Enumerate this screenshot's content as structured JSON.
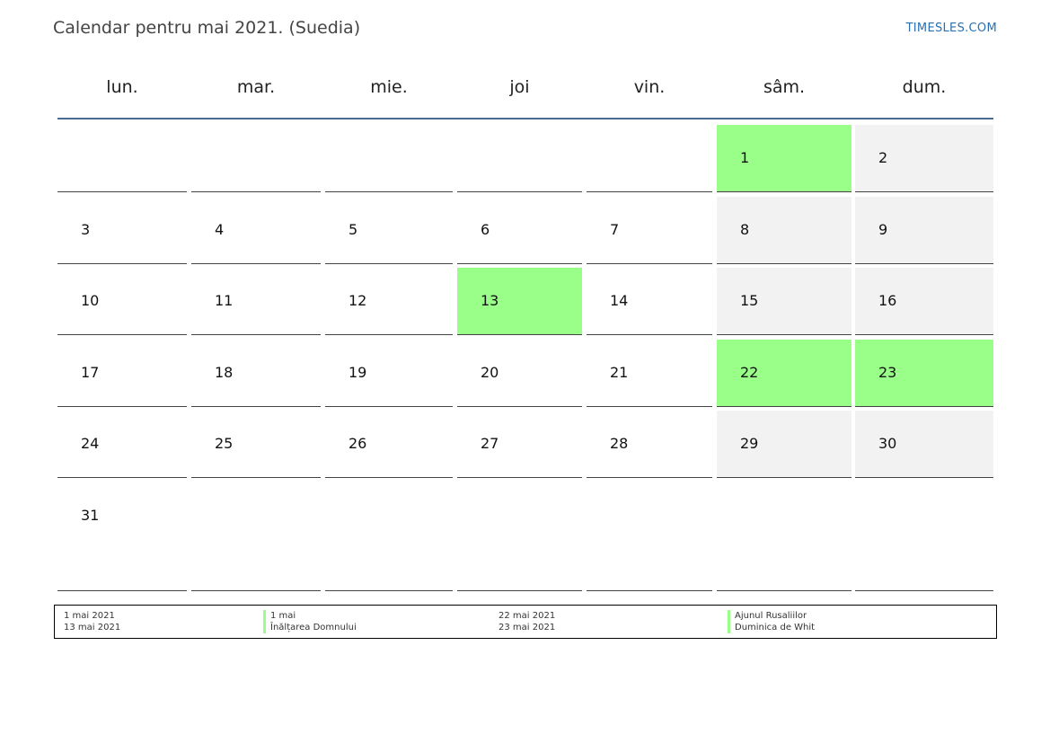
{
  "header": {
    "title": "Calendar pentru mai 2021. (Suedia)",
    "brand": "TIMESLES.COM"
  },
  "weekdays": [
    "lun.",
    "mar.",
    "mie.",
    "joi",
    "vin.",
    "sâm.",
    "dum."
  ],
  "weeks": [
    [
      "",
      "",
      "",
      "",
      "",
      "1",
      "2"
    ],
    [
      "3",
      "4",
      "5",
      "6",
      "7",
      "8",
      "9"
    ],
    [
      "10",
      "11",
      "12",
      "13",
      "14",
      "15",
      "16"
    ],
    [
      "17",
      "18",
      "19",
      "20",
      "21",
      "22",
      "23"
    ],
    [
      "24",
      "25",
      "26",
      "27",
      "28",
      "29",
      "30"
    ],
    [
      "31",
      "",
      "",
      "",
      "",
      "",
      ""
    ]
  ],
  "holiday_days": [
    "1",
    "13",
    "22",
    "23"
  ],
  "colors": {
    "holiday": "#99ff88",
    "weekend": "#f2f2f2",
    "header_rule": "#4a6b91",
    "brand": "#2b6fb0"
  },
  "legend": {
    "left": {
      "dates": [
        "1 mai 2021",
        "13 mai 2021"
      ],
      "names": [
        "1 mai",
        "Înălțarea Domnului"
      ]
    },
    "right": {
      "dates": [
        "22 mai 2021",
        "23 mai 2021"
      ],
      "names": [
        "Ajunul Rusaliilor",
        "Duminica de Whit"
      ]
    }
  }
}
